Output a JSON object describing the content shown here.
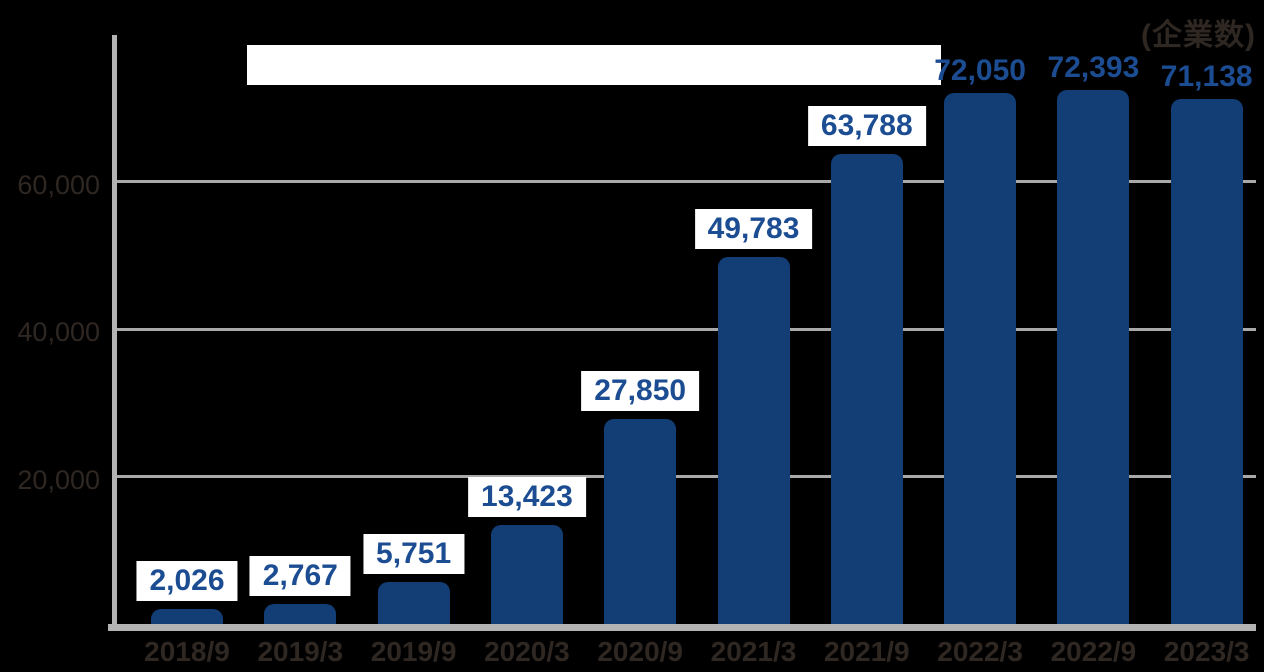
{
  "chart_data": {
    "type": "bar",
    "title": "",
    "unit_label": "(企業数)",
    "xlabel": "",
    "ylabel": "",
    "categories": [
      "2018/9",
      "2019/3",
      "2019/9",
      "2020/3",
      "2020/9",
      "2021/3",
      "2021/9",
      "2022/3",
      "2022/9",
      "2023/3"
    ],
    "values": [
      2026,
      2767,
      5751,
      13423,
      27850,
      49783,
      63788,
      72050,
      72393,
      71138
    ],
    "value_labels": [
      "2,026",
      "2,767",
      "5,751",
      "13,423",
      "27,850",
      "49,783",
      "63,788",
      "72,050",
      "72,393",
      "71,138"
    ],
    "value_label_has_white_box": [
      true,
      true,
      true,
      true,
      true,
      true,
      true,
      false,
      false,
      false
    ],
    "y_ticks": [
      20000,
      40000,
      60000
    ],
    "y_tick_labels": [
      "20,000",
      "40,000",
      "60,000"
    ],
    "ylim": [
      0,
      80000
    ],
    "grid": true,
    "legend": "none",
    "colors": {
      "background": "#000000",
      "bar": "#123d75",
      "value_text": "#1c4d92",
      "value_box": "#ffffff",
      "axis_text": "#2f2722",
      "gridline": "#a9a9a9",
      "axis_line": "#b3b3b3",
      "title_band": "#ffffff"
    }
  }
}
